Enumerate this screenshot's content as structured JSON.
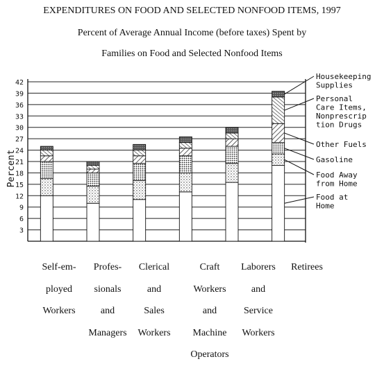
{
  "titles": {
    "main": "EXPENDITURES ON FOOD AND SELECTED NONFOOD ITEMS, 1997",
    "line2": "Percent of Average Annual Income (before taxes) Spent by",
    "line3": "Families on Food and Selected Nonfood Items"
  },
  "chart_data": {
    "type": "bar",
    "stacked": true,
    "ylabel": "Percent",
    "ylim": [
      0,
      42
    ],
    "yticks": [
      3,
      6,
      9,
      12,
      15,
      18,
      21,
      24,
      27,
      30,
      33,
      36,
      39,
      42
    ],
    "ytick_labels": [
      "3",
      "6",
      "9",
      "12",
      "15",
      "18",
      "21",
      "24",
      "27",
      "30",
      "33",
      "36",
      "39",
      "42"
    ],
    "grid": true,
    "legend_position": "right",
    "categories": [
      [
        "Self-em-",
        "ployed",
        "Workers"
      ],
      [
        "Profes-",
        "sionals",
        "and",
        "Managers"
      ],
      [
        "Clerical",
        "and",
        "Sales",
        "Workers"
      ],
      [
        "Craft",
        "Workers",
        "and",
        "Machine",
        "Operators"
      ],
      [
        "Laborers",
        "and",
        "Service",
        "Workers"
      ],
      [
        "Retirees"
      ]
    ],
    "series": [
      {
        "name": "Food at Home",
        "values": [
          12.0,
          10.0,
          11.0,
          13.0,
          15.5,
          20.0
        ]
      },
      {
        "name": "Food Away from Home",
        "values": [
          4.5,
          4.5,
          5.0,
          5.0,
          5.0,
          3.0
        ]
      },
      {
        "name": "Gasoline",
        "values": [
          4.5,
          3.5,
          4.5,
          4.5,
          4.5,
          3.0
        ]
      },
      {
        "name": "Other Fuels",
        "values": [
          1.5,
          1.0,
          2.0,
          2.0,
          2.0,
          5.0
        ]
      },
      {
        "name": "Personal Care Items, Nonprescription Drugs",
        "values": [
          1.5,
          1.0,
          1.5,
          1.5,
          1.5,
          7.0
        ]
      },
      {
        "name": "Housekeeping Supplies",
        "values": [
          1.0,
          1.0,
          1.5,
          1.5,
          1.5,
          1.5
        ]
      }
    ],
    "legend_labels": [
      [
        "Housekeeping",
        "Supplies"
      ],
      [
        "Personal",
        "Care Items,",
        "Nonprescrip",
        "tion Drugs"
      ],
      [
        "Other Fuels"
      ],
      [
        "Gasoline"
      ],
      [
        "Food Away",
        "from Home"
      ],
      [
        "Food at",
        "Home"
      ]
    ]
  }
}
